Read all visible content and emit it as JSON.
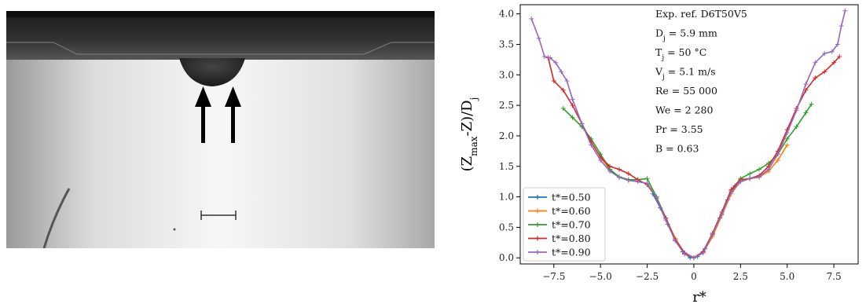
{
  "photo": {
    "alt": ""
  },
  "chart_data": {
    "type": "line",
    "xlabel": "r*",
    "ylabel_base": "(Z",
    "ylabel_sub1": "max",
    "ylabel_mid": "-Z)/D",
    "ylabel_sub2": "j",
    "xlim": [
      -9.3,
      8.8
    ],
    "ylim": [
      -0.1,
      4.15
    ],
    "xticks": [
      -7.5,
      -5.0,
      -2.5,
      0,
      2.5,
      5.0,
      7.5
    ],
    "xtick_labels": [
      "−7.5",
      "−5.0",
      "−2.5",
      "0",
      "2.5",
      "5.0",
      "7.5"
    ],
    "yticks": [
      0.0,
      0.5,
      1.0,
      1.5,
      2.0,
      2.5,
      3.0,
      3.5,
      4.0
    ],
    "ytick_labels": [
      "0.0",
      "0.5",
      "1.0",
      "1.5",
      "2.0",
      "2.5",
      "3.0",
      "3.5",
      "4.0"
    ],
    "annotations": [
      {
        "base": "Exp. ref. D6T50V5",
        "sub": "",
        "rest": ""
      },
      {
        "base": "D",
        "sub": "j",
        "rest": " = 5.9 mm"
      },
      {
        "base": "T",
        "sub": "j",
        "rest": " = 50 °C"
      },
      {
        "base": "V",
        "sub": "j",
        "rest": " = 5.1 m/s"
      },
      {
        "base": "Re = 55 000",
        "sub": "",
        "rest": ""
      },
      {
        "base": "We = 2 280",
        "sub": "",
        "rest": ""
      },
      {
        "base": "Pr = 3.55",
        "sub": "",
        "rest": ""
      },
      {
        "base": "B = 0.63",
        "sub": "",
        "rest": ""
      }
    ],
    "legend_position": "bottom-left",
    "series": [
      {
        "name": "t*=0.50",
        "color": "#1f77b4",
        "x": [
          -2.2,
          -1.8,
          -1.4,
          -1.0,
          -0.6,
          -0.2,
          0.2,
          0.6,
          1.0,
          1.4,
          1.8,
          2.2
        ],
        "y": [
          1.05,
          0.82,
          0.55,
          0.3,
          0.1,
          0.0,
          0.02,
          0.15,
          0.38,
          0.65,
          0.95,
          1.18
        ]
      },
      {
        "name": "t*=0.60",
        "color": "#ff7f0e",
        "x": [
          -5.0,
          -4.5,
          -4.0,
          -3.5,
          -3.0,
          -2.5,
          -2.0,
          -1.5,
          -1.0,
          -0.5,
          0.0,
          0.5,
          1.0,
          1.5,
          2.0,
          2.5,
          3.0,
          3.5,
          4.0,
          4.5,
          5.0
        ],
        "y": [
          1.65,
          1.45,
          1.32,
          1.27,
          1.25,
          1.22,
          1.0,
          0.65,
          0.32,
          0.08,
          0.0,
          0.08,
          0.35,
          0.7,
          1.05,
          1.25,
          1.3,
          1.32,
          1.42,
          1.6,
          1.85
        ]
      },
      {
        "name": "t*=0.70",
        "color": "#2ca02c",
        "x": [
          -7.0,
          -6.5,
          -6.0,
          -5.5,
          -5.0,
          -4.5,
          -4.0,
          -3.5,
          -3.0,
          -2.5,
          -2.0,
          -1.5,
          -1.0,
          -0.5,
          0.0,
          0.5,
          1.0,
          1.5,
          2.0,
          2.5,
          3.0,
          3.5,
          4.0,
          4.5,
          5.0,
          5.5,
          6.0,
          6.3
        ],
        "y": [
          2.45,
          2.3,
          2.15,
          1.95,
          1.7,
          1.45,
          1.33,
          1.28,
          1.28,
          1.3,
          1.0,
          0.65,
          0.3,
          0.08,
          0.0,
          0.1,
          0.4,
          0.75,
          1.1,
          1.3,
          1.38,
          1.45,
          1.55,
          1.7,
          1.95,
          2.15,
          2.38,
          2.52
        ]
      },
      {
        "name": "t*=0.80",
        "color": "#d62728",
        "x": [
          -7.8,
          -7.5,
          -7.0,
          -6.5,
          -6.0,
          -5.5,
          -5.0,
          -4.5,
          -4.0,
          -3.5,
          -3.0,
          -2.5,
          -2.0,
          -1.5,
          -1.0,
          -0.5,
          0.0,
          0.5,
          1.0,
          1.5,
          2.0,
          2.5,
          3.0,
          3.5,
          4.0,
          4.5,
          5.0,
          5.5,
          6.0,
          6.5,
          7.0,
          7.5,
          7.8
        ],
        "y": [
          3.28,
          2.9,
          2.75,
          2.5,
          2.2,
          1.9,
          1.65,
          1.5,
          1.45,
          1.38,
          1.28,
          1.2,
          0.98,
          0.65,
          0.3,
          0.08,
          0.0,
          0.1,
          0.4,
          0.75,
          1.12,
          1.28,
          1.3,
          1.35,
          1.5,
          1.75,
          2.1,
          2.45,
          2.75,
          2.95,
          3.05,
          3.2,
          3.3
        ]
      },
      {
        "name": "t*=0.90",
        "color": "#9467bd",
        "x": [
          -8.7,
          -8.3,
          -8.0,
          -7.7,
          -7.4,
          -7.1,
          -6.8,
          -6.5,
          -6.0,
          -5.5,
          -5.0,
          -4.5,
          -4.0,
          -3.5,
          -3.0,
          -2.5,
          -2.0,
          -1.5,
          -1.0,
          -0.5,
          0.0,
          0.5,
          1.0,
          1.5,
          2.0,
          2.5,
          3.0,
          3.5,
          4.0,
          4.5,
          5.0,
          5.5,
          6.0,
          6.5,
          7.0,
          7.4,
          7.7,
          7.9,
          8.1
        ],
        "y": [
          3.92,
          3.6,
          3.3,
          3.28,
          3.2,
          3.05,
          2.9,
          2.6,
          2.2,
          1.85,
          1.6,
          1.42,
          1.32,
          1.27,
          1.25,
          1.22,
          0.98,
          0.62,
          0.28,
          0.06,
          0.0,
          0.08,
          0.38,
          0.72,
          1.08,
          1.25,
          1.3,
          1.33,
          1.45,
          1.7,
          2.05,
          2.42,
          2.85,
          3.2,
          3.35,
          3.38,
          3.5,
          3.8,
          4.05
        ]
      }
    ]
  }
}
